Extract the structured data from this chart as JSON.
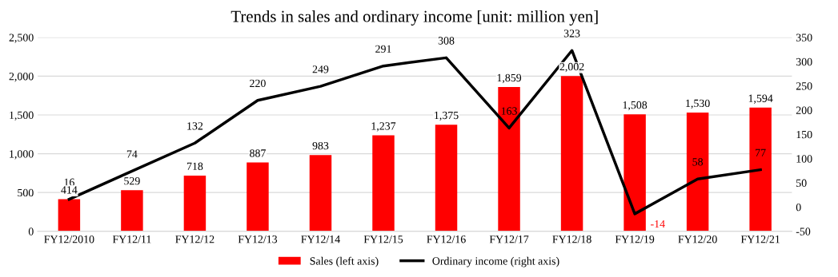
{
  "chart_data": {
    "type": "bar",
    "title": "Trends in sales and ordinary income [unit: million yen]",
    "categories": [
      "FY12/2010",
      "FY12/11",
      "FY12/12",
      "FY12/13",
      "FY12/14",
      "FY12/15",
      "FY12/16",
      "FY12/17",
      "FY12/18",
      "FY12/19",
      "FY12/20",
      "FY12/21"
    ],
    "series": [
      {
        "name": "Sales (left axis)",
        "color": "#ff0000",
        "values": [
          414,
          529,
          718,
          887,
          983,
          1237,
          1375,
          1859,
          2002,
          1508,
          1530,
          1594
        ],
        "value_labels": [
          "414",
          "529",
          "718",
          "887",
          "983",
          "1,237",
          "1,375",
          "1,859",
          "2,002",
          "1,508",
          "1,530",
          "1,594"
        ]
      },
      {
        "name": "Ordinary income (right axis)",
        "type": "line",
        "axis": "y2",
        "color": "#000000",
        "values": [
          16,
          74,
          132,
          220,
          249,
          291,
          308,
          163,
          323,
          -14,
          58,
          77
        ],
        "value_labels": [
          "16",
          "74",
          "132",
          "220",
          "249",
          "291",
          "308",
          "163",
          "323",
          "-14",
          "58",
          "77"
        ]
      }
    ],
    "ylim": [
      0,
      2500
    ],
    "yticks": [
      {
        "value": 0,
        "label": "0"
      },
      {
        "value": 500,
        "label": "500"
      },
      {
        "value": 1000,
        "label": "1,000"
      },
      {
        "value": 1500,
        "label": "1,500"
      },
      {
        "value": 2000,
        "label": "2,000"
      },
      {
        "value": 2500,
        "label": "2,500"
      }
    ],
    "y2lim": [
      -50,
      350
    ],
    "y2ticks": [
      -50,
      0,
      50,
      100,
      150,
      200,
      250,
      300,
      350
    ],
    "grid": "y",
    "legend": "bottom",
    "marker": "none",
    "line_style": "solid"
  }
}
